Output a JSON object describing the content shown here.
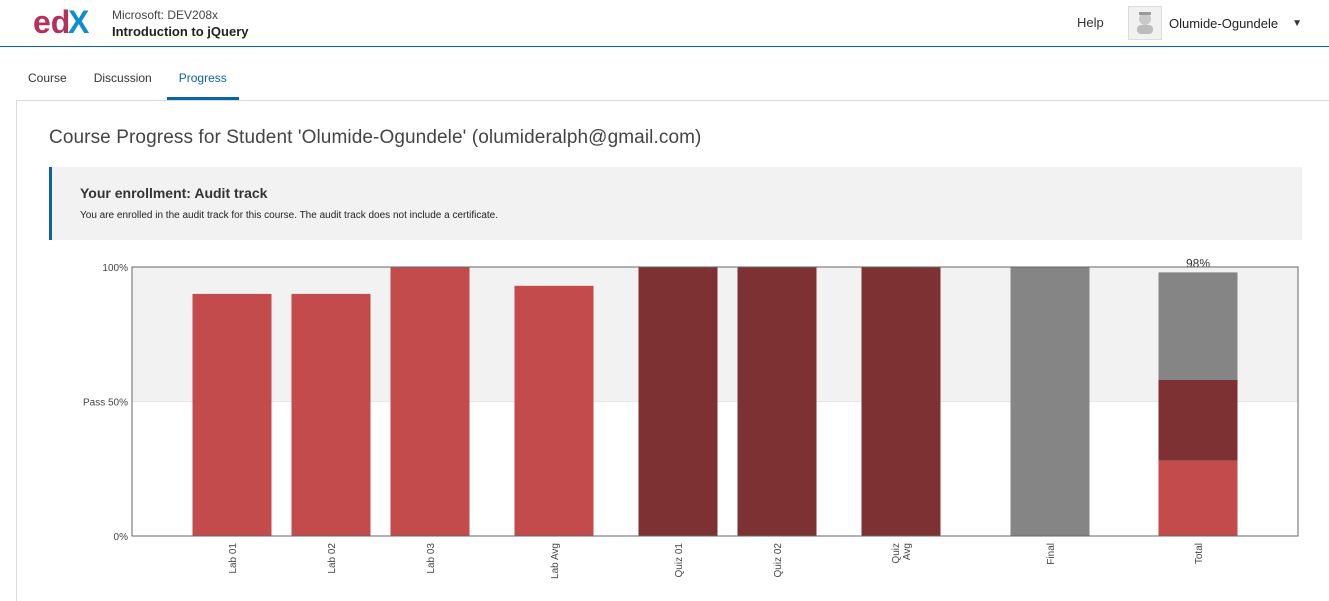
{
  "header": {
    "course_org": "Microsoft: DEV208x",
    "course_name": "Introduction to jQuery",
    "help_label": "Help",
    "username": "Olumide-Ogundele",
    "logo_icon": "edx-logo"
  },
  "tabs": [
    {
      "label": "Course",
      "active": false
    },
    {
      "label": "Discussion",
      "active": false
    },
    {
      "label": "Progress",
      "active": true
    }
  ],
  "page_title": "Course Progress for Student 'Olumide-Ogundele' (olumideralph@gmail.com)",
  "enrollment": {
    "title": "Your enrollment: Audit track",
    "text": "You are enrolled in the audit track for this course. The audit track does not include a certificate."
  },
  "chart_data": {
    "type": "bar",
    "categories": [
      "Lab 01",
      "Lab 02",
      "Lab 03",
      "Lab Avg",
      "Quiz 01",
      "Quiz 02",
      "Quiz Avg",
      "Final",
      "Total"
    ],
    "values": [
      90,
      90,
      100,
      93,
      100,
      100,
      100,
      100,
      98
    ],
    "colors": [
      "#c44b4b",
      "#c44b4b",
      "#c44b4b",
      "#c44b4b",
      "#7d3133",
      "#7d3133",
      "#7d3133",
      "#858585",
      null
    ],
    "total_stack": [
      {
        "value": 28,
        "color": "#c44b4b"
      },
      {
        "value": 30,
        "color": "#7d3133"
      },
      {
        "value": 40,
        "color": "#858585"
      }
    ],
    "total_label": "98%",
    "y_ticks": [
      {
        "value": 100,
        "label": "100%"
      },
      {
        "value": 50,
        "label": "Pass 50%"
      },
      {
        "value": 0,
        "label": "0%"
      }
    ],
    "pass_value": 50,
    "ylim": [
      0,
      100
    ]
  }
}
